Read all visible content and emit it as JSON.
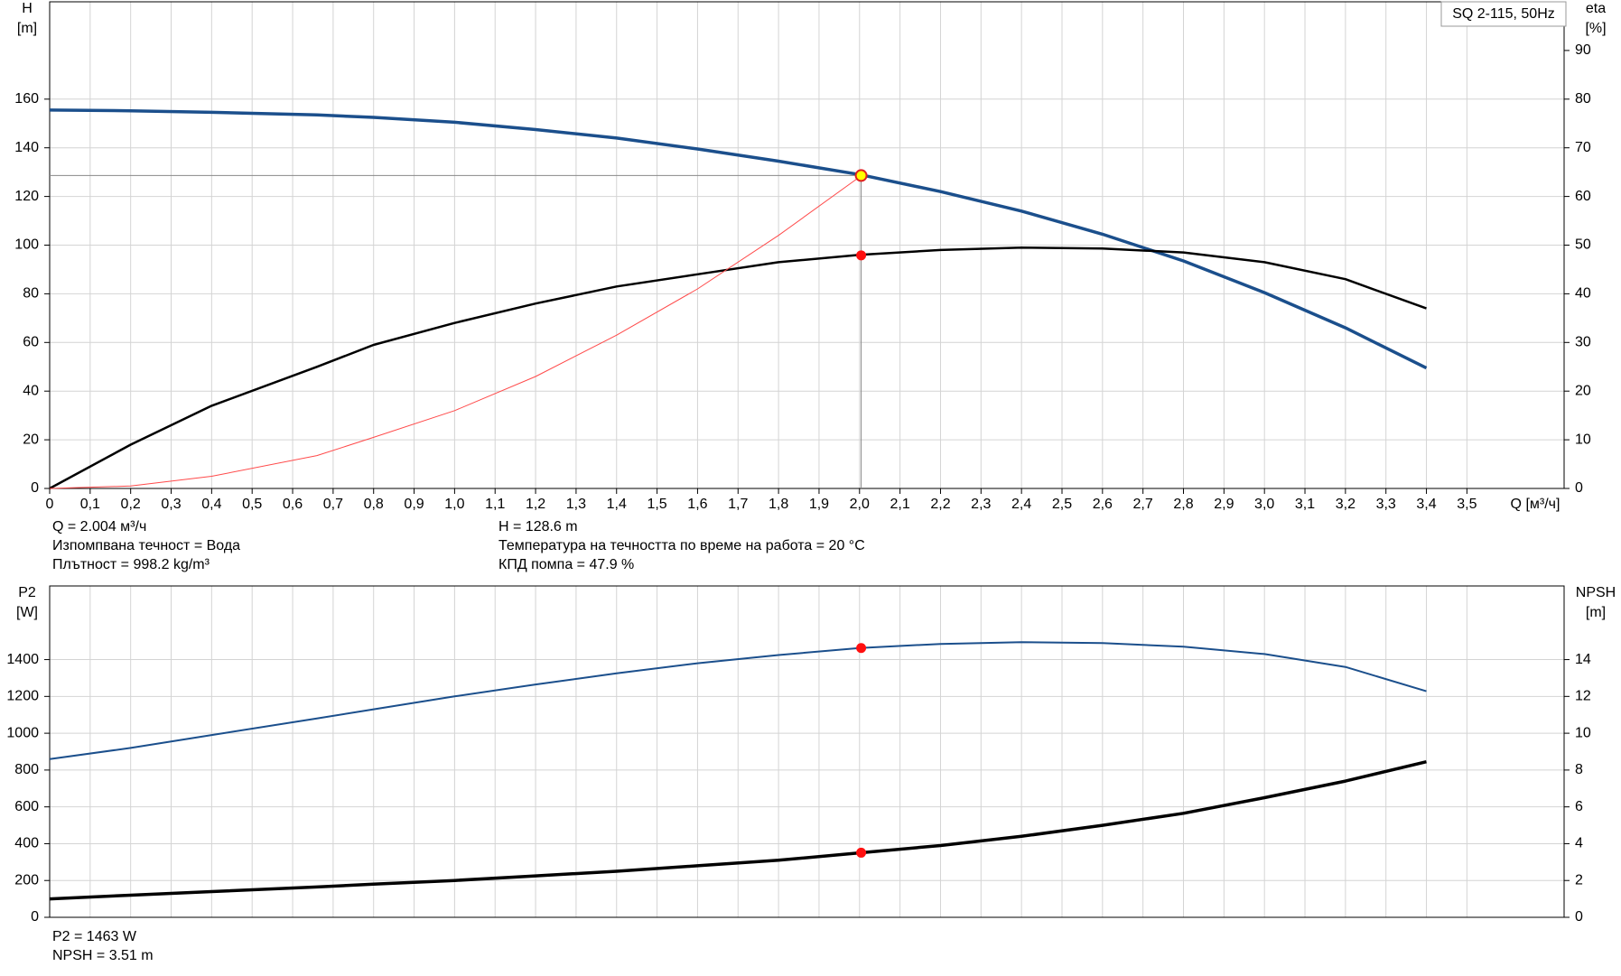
{
  "chart_data": [
    {
      "type": "line",
      "ylabel": [
        "H",
        "[m]"
      ],
      "y2label": [
        "eta",
        "[%]"
      ],
      "xlabel": "Q [м³/ч]",
      "legend_text": "SQ 2-115, 50Hz",
      "xlim": [
        0,
        3.74
      ],
      "ylim": [
        0,
        200
      ],
      "y2lim": [
        0,
        100
      ],
      "grid": true,
      "xticks": [
        0,
        {
          "value": 0.1,
          "label": "0,1"
        },
        {
          "value": 0.2,
          "label": "0,2"
        },
        {
          "value": 0.3,
          "label": "0,3"
        },
        {
          "value": 0.4,
          "label": "0,4"
        },
        {
          "value": 0.5,
          "label": "0,5"
        },
        {
          "value": 0.6,
          "label": "0,6"
        },
        {
          "value": 0.7,
          "label": "0,7"
        },
        {
          "value": 0.8,
          "label": "0,8"
        },
        {
          "value": 0.9,
          "label": "0,9"
        },
        {
          "value": 1.0,
          "label": "1,0"
        },
        {
          "value": 1.1,
          "label": "1,1"
        },
        {
          "value": 1.2,
          "label": "1,2"
        },
        {
          "value": 1.3,
          "label": "1,3"
        },
        {
          "value": 1.4,
          "label": "1,4"
        },
        {
          "value": 1.5,
          "label": "1,5"
        },
        {
          "value": 1.6,
          "label": "1,6"
        },
        {
          "value": 1.7,
          "label": "1,7"
        },
        {
          "value": 1.8,
          "label": "1,8"
        },
        {
          "value": 1.9,
          "label": "1,9"
        },
        {
          "value": 2.0,
          "label": "2,0"
        },
        {
          "value": 2.1,
          "label": "2,1"
        },
        {
          "value": 2.2,
          "label": "2,2"
        },
        {
          "value": 2.3,
          "label": "2,3"
        },
        {
          "value": 2.4,
          "label": "2,4"
        },
        {
          "value": 2.5,
          "label": "2,5"
        },
        {
          "value": 2.6,
          "label": "2,6"
        },
        {
          "value": 2.7,
          "label": "2,7"
        },
        {
          "value": 2.8,
          "label": "2,8"
        },
        {
          "value": 2.9,
          "label": "2,9"
        },
        {
          "value": 3.0,
          "label": "3,0"
        },
        {
          "value": 3.1,
          "label": "3,1"
        },
        {
          "value": 3.2,
          "label": "3,2"
        },
        {
          "value": 3.3,
          "label": "3,3"
        },
        {
          "value": 3.4,
          "label": "3,4"
        },
        {
          "value": 3.5,
          "label": "3,5"
        }
      ],
      "yticks": [
        0,
        20,
        40,
        60,
        80,
        100,
        120,
        140,
        160
      ],
      "y2ticks": [
        0,
        10,
        20,
        30,
        40,
        50,
        60,
        70,
        80,
        90
      ],
      "x": [
        0,
        0.2,
        0.4,
        0.66,
        0.8,
        1.0,
        1.2,
        1.4,
        1.6,
        1.8,
        2.0,
        2.2,
        2.4,
        2.6,
        2.8,
        3.0,
        3.2,
        3.4
      ],
      "series": [
        {
          "color": "#1b4f8c",
          "width": 3.5,
          "axis": "y",
          "values": [
            155.5,
            155.2,
            154.6,
            153.5,
            152.5,
            150.5,
            147.5,
            144,
            139.5,
            134.5,
            129,
            122,
            114,
            104.5,
            93.5,
            80.5,
            66,
            49.5
          ]
        },
        {
          "color": "#000000",
          "width": 2.5,
          "axis": "y2",
          "values": [
            0,
            9,
            17,
            25,
            29.5,
            34,
            38,
            41.5,
            44,
            46.5,
            48,
            49,
            49.5,
            49.3,
            48.5,
            46.5,
            43,
            37
          ]
        },
        {
          "color": "#ff4a4a",
          "width": 1,
          "axis": "y",
          "values": [
            0,
            1,
            5,
            13.5,
            21,
            32,
            46,
            63,
            82,
            104,
            128,
            null,
            null,
            null,
            null,
            null,
            null,
            null
          ]
        }
      ],
      "operating_point": {
        "x": 2.004,
        "y": 128.6,
        "y2": 47.9
      },
      "notes": [
        "Q = 2.004 м³/ч",
        "Изпомпвана течност = Вода",
        "Плътност = 998.2 kg/m³",
        "H = 128.6 m",
        "Температура на течността по време на работа = 20 °C",
        "КПД помпа = 47.9 %"
      ]
    },
    {
      "type": "line",
      "ylabel": [
        "P2",
        "[W]"
      ],
      "y2label": [
        "NPSH",
        "[m]"
      ],
      "xlim": [
        0,
        3.74
      ],
      "ylim": [
        0,
        1800
      ],
      "y2lim": [
        0,
        18
      ],
      "grid": true,
      "yticks": [
        0,
        200,
        400,
        600,
        800,
        1000,
        1200,
        1400
      ],
      "y2ticks": [
        0,
        2,
        4,
        6,
        8,
        10,
        12,
        14
      ],
      "x": [
        0,
        0.2,
        0.4,
        0.66,
        0.8,
        1.0,
        1.2,
        1.4,
        1.6,
        1.8,
        2.0,
        2.2,
        2.4,
        2.6,
        2.8,
        3.0,
        3.2,
        3.4
      ],
      "series": [
        {
          "color": "#1b4f8c",
          "width": 2,
          "axis": "y",
          "values": [
            860,
            920,
            990,
            1080,
            1130,
            1200,
            1265,
            1325,
            1380,
            1425,
            1463,
            1485,
            1495,
            1490,
            1470,
            1430,
            1360,
            1228
          ]
        },
        {
          "color": "#000000",
          "width": 3.5,
          "axis": "y2",
          "values": [
            1.0,
            1.2,
            1.4,
            1.65,
            1.8,
            2.0,
            2.25,
            2.5,
            2.8,
            3.1,
            3.5,
            3.9,
            4.4,
            5.0,
            5.65,
            6.5,
            7.4,
            8.45
          ]
        }
      ],
      "operating_point": {
        "x": 2.004,
        "y": 1463,
        "y2": 3.51
      },
      "notes": [
        "P2 = 1463 W",
        "NPSH = 3.51 m"
      ]
    }
  ]
}
